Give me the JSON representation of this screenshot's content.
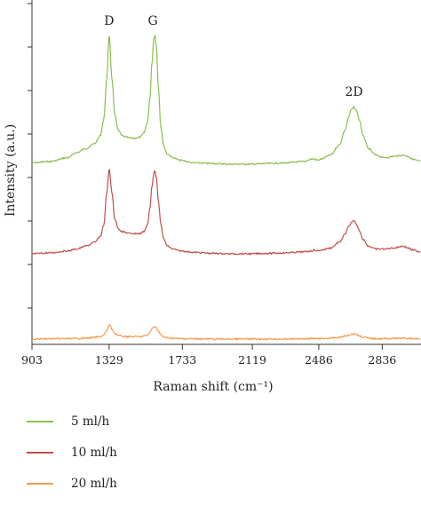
{
  "chart_data": {
    "type": "line",
    "xlabel": "Raman shift (cm⁻¹)",
    "ylabel": "Intensity (a.u.)",
    "xlim": [
      903,
      3050
    ],
    "x_ticks": [
      "903",
      "1329",
      "1733",
      "2119",
      "2486",
      "2836"
    ],
    "x_tick_values": [
      903,
      1329,
      1733,
      2119,
      2486,
      2836
    ],
    "y_ticks_labeled": false,
    "grid": false,
    "peak_labels": [
      {
        "text": "D",
        "x": 1329
      },
      {
        "text": "G",
        "x": 1580
      },
      {
        "text": "2D",
        "x": 2680
      }
    ],
    "series": [
      {
        "name": "5 ml/h",
        "color": "#8cbf4e",
        "x": [
          903,
          1000,
          1100,
          1150,
          1200,
          1250,
          1280,
          1300,
          1315,
          1329,
          1345,
          1360,
          1380,
          1400,
          1420,
          1450,
          1480,
          1500,
          1520,
          1540,
          1555,
          1565,
          1575,
          1582,
          1590,
          1600,
          1615,
          1630,
          1650,
          1680,
          1720,
          1800,
          1900,
          2000,
          2100,
          2200,
          2300,
          2400,
          2450,
          2460,
          2480,
          2500,
          2550,
          2600,
          2630,
          2650,
          2665,
          2680,
          2695,
          2710,
          2730,
          2760,
          2800,
          2850,
          2900,
          2950,
          2980,
          3000,
          3050
        ],
        "y": [
          0.01,
          0.02,
          0.05,
          0.09,
          0.12,
          0.16,
          0.22,
          0.35,
          0.65,
          1.0,
          0.65,
          0.38,
          0.26,
          0.22,
          0.21,
          0.2,
          0.2,
          0.21,
          0.24,
          0.32,
          0.52,
          0.78,
          0.97,
          1.0,
          0.9,
          0.6,
          0.28,
          0.14,
          0.08,
          0.05,
          0.03,
          0.01,
          0.005,
          0.0,
          0.0,
          0.005,
          0.01,
          0.02,
          0.04,
          0.04,
          0.03,
          0.04,
          0.07,
          0.15,
          0.26,
          0.36,
          0.42,
          0.44,
          0.41,
          0.34,
          0.22,
          0.12,
          0.07,
          0.05,
          0.06,
          0.07,
          0.06,
          0.04,
          0.02
        ]
      },
      {
        "name": "10 ml/h",
        "color": "#c0504d",
        "x": [
          903,
          1000,
          1100,
          1150,
          1200,
          1250,
          1280,
          1300,
          1315,
          1329,
          1345,
          1360,
          1380,
          1400,
          1420,
          1450,
          1480,
          1500,
          1520,
          1540,
          1555,
          1565,
          1575,
          1582,
          1590,
          1600,
          1615,
          1630,
          1650,
          1680,
          1720,
          1800,
          1900,
          2000,
          2100,
          2200,
          2300,
          2400,
          2450,
          2460,
          2480,
          2500,
          2550,
          2600,
          2630,
          2650,
          2665,
          2680,
          2695,
          2710,
          2730,
          2760,
          2800,
          2850,
          2900,
          2950,
          2980,
          3000,
          3050
        ],
        "y": [
          0.0,
          0.01,
          0.03,
          0.05,
          0.08,
          0.12,
          0.18,
          0.3,
          0.62,
          0.88,
          0.62,
          0.36,
          0.26,
          0.23,
          0.22,
          0.21,
          0.21,
          0.21,
          0.23,
          0.3,
          0.48,
          0.7,
          0.83,
          0.86,
          0.78,
          0.55,
          0.3,
          0.15,
          0.08,
          0.05,
          0.03,
          0.015,
          0.005,
          0.0,
          0.0,
          0.005,
          0.01,
          0.02,
          0.03,
          0.04,
          0.03,
          0.04,
          0.06,
          0.12,
          0.2,
          0.28,
          0.32,
          0.34,
          0.3,
          0.24,
          0.15,
          0.08,
          0.05,
          0.05,
          0.06,
          0.08,
          0.06,
          0.04,
          0.02
        ]
      },
      {
        "name": "20 ml/h",
        "color": "#f59a4c",
        "x": [
          903,
          1000,
          1100,
          1150,
          1200,
          1250,
          1280,
          1300,
          1315,
          1329,
          1345,
          1360,
          1380,
          1400,
          1420,
          1450,
          1480,
          1500,
          1520,
          1540,
          1555,
          1565,
          1575,
          1582,
          1590,
          1600,
          1615,
          1630,
          1650,
          1680,
          1720,
          1800,
          1900,
          2000,
          2100,
          2200,
          2300,
          2400,
          2450,
          2460,
          2480,
          2500,
          2550,
          2600,
          2630,
          2650,
          2665,
          2680,
          2695,
          2710,
          2730,
          2760,
          2800,
          2850,
          2900,
          2950,
          2980,
          3000,
          3050
        ],
        "y": [
          0.0,
          0.005,
          0.01,
          0.015,
          0.02,
          0.04,
          0.06,
          0.1,
          0.2,
          0.36,
          0.25,
          0.14,
          0.09,
          0.07,
          0.06,
          0.06,
          0.06,
          0.06,
          0.07,
          0.1,
          0.17,
          0.25,
          0.31,
          0.32,
          0.28,
          0.2,
          0.1,
          0.05,
          0.03,
          0.02,
          0.01,
          0.005,
          0.0,
          0.0,
          0.0,
          0.0,
          0.0,
          0.005,
          0.01,
          0.01,
          0.01,
          0.01,
          0.02,
          0.04,
          0.07,
          0.1,
          0.12,
          0.13,
          0.11,
          0.08,
          0.05,
          0.02,
          0.01,
          0.01,
          0.015,
          0.02,
          0.015,
          0.01,
          0.005
        ]
      }
    ]
  }
}
